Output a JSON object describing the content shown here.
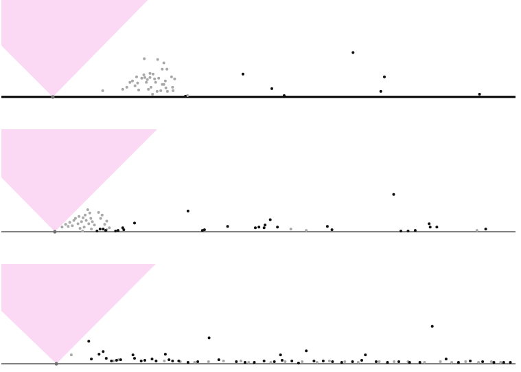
{
  "colors": {
    "background": "#ffffff",
    "cone": "#fbd9f5",
    "point_dark": "#111111",
    "point_light": "#a8a8a8",
    "baseline": "#000000",
    "origin": "#6f6f6f"
  },
  "chart_data": [
    {
      "type": "scatter",
      "title": "",
      "xlabel": "",
      "ylabel": "",
      "xlim": [
        0,
        100
      ],
      "ylim": [
        0,
        100
      ],
      "grid": false,
      "legend": "none",
      "cone": {
        "apex_x": 10,
        "top_left_x": 0,
        "top_right_x": 28.5
      },
      "dark_points": [
        [
          35.8,
          1
        ],
        [
          47,
          33
        ],
        [
          52.6,
          12
        ],
        [
          55,
          2
        ],
        [
          68.4,
          64
        ],
        [
          73.8,
          8
        ],
        [
          74.5,
          29
        ],
        [
          93,
          4
        ]
      ],
      "light_points": [
        [
          19.7,
          9
        ],
        [
          23.6,
          11
        ],
        [
          24.4,
          14
        ],
        [
          25,
          21
        ],
        [
          25.5,
          23
        ],
        [
          26,
          16
        ],
        [
          26.5,
          20
        ],
        [
          26.7,
          10
        ],
        [
          27.3,
          27
        ],
        [
          27.7,
          32
        ],
        [
          27.9,
          28
        ],
        [
          28.2,
          21
        ],
        [
          28.4,
          25
        ],
        [
          28.6,
          11
        ],
        [
          28.9,
          34
        ],
        [
          29.1,
          14
        ],
        [
          29.4,
          4
        ],
        [
          29.8,
          26
        ],
        [
          30,
          21
        ],
        [
          30.3,
          8
        ],
        [
          30.6,
          27
        ],
        [
          31,
          9
        ],
        [
          31.3,
          18
        ],
        [
          31.6,
          18
        ],
        [
          32,
          13
        ],
        [
          32.3,
          8
        ],
        [
          33.1,
          29
        ],
        [
          33.4,
          9
        ],
        [
          27.8,
          55
        ],
        [
          30.4,
          54
        ],
        [
          31.6,
          49
        ],
        [
          26.3,
          29
        ],
        [
          28.9,
          28
        ],
        [
          29.5,
          33
        ],
        [
          31.3,
          40
        ],
        [
          32.2,
          40
        ],
        [
          33.3,
          14
        ],
        [
          31.9,
          23
        ],
        [
          33.7,
          26
        ],
        [
          36.2,
          2
        ]
      ]
    },
    {
      "type": "scatter",
      "title": "",
      "xlabel": "",
      "ylabel": "",
      "xlim": [
        0,
        100
      ],
      "ylim": [
        0,
        100
      ],
      "grid": false,
      "legend": "none",
      "cone": {
        "apex_x": 10.4,
        "top_left_x": 0,
        "top_right_x": 30.3
      },
      "dark_points": [
        [
          18.6,
          1
        ],
        [
          19.2,
          4
        ],
        [
          19.8,
          4
        ],
        [
          20.3,
          2
        ],
        [
          22.2,
          1
        ],
        [
          22.7,
          2
        ],
        [
          23.6,
          6
        ],
        [
          23.8,
          3
        ],
        [
          25.9,
          13
        ],
        [
          36.3,
          31
        ],
        [
          39.1,
          2
        ],
        [
          39.5,
          3
        ],
        [
          44,
          8
        ],
        [
          49.4,
          6
        ],
        [
          50.1,
          7
        ],
        [
          51.1,
          6
        ],
        [
          51.3,
          10
        ],
        [
          52.3,
          18
        ],
        [
          53.7,
          7
        ],
        [
          63.4,
          8
        ],
        [
          64.3,
          3
        ],
        [
          76.3,
          56
        ],
        [
          77.7,
          1
        ],
        [
          79.1,
          1
        ],
        [
          80.5,
          2
        ],
        [
          83.2,
          12
        ],
        [
          83.4,
          7
        ],
        [
          84.7,
          7
        ],
        [
          94.2,
          4
        ]
      ],
      "light_points": [
        [
          11.8,
          7
        ],
        [
          12.5,
          11
        ],
        [
          13,
          8
        ],
        [
          13.3,
          14
        ],
        [
          13.8,
          9
        ],
        [
          14.1,
          17
        ],
        [
          14.4,
          20
        ],
        [
          14.9,
          12
        ],
        [
          15.1,
          23
        ],
        [
          15.3,
          5
        ],
        [
          15.6,
          15
        ],
        [
          15.9,
          21
        ],
        [
          16.1,
          7
        ],
        [
          16.3,
          25
        ],
        [
          16.5,
          17
        ],
        [
          16.8,
          33
        ],
        [
          17,
          12
        ],
        [
          17.2,
          28
        ],
        [
          17.4,
          20
        ],
        [
          17.5,
          4
        ],
        [
          17.7,
          15
        ],
        [
          18.1,
          10
        ],
        [
          18.9,
          29
        ],
        [
          19.3,
          20
        ],
        [
          19.6,
          25
        ],
        [
          20.1,
          11
        ],
        [
          20.5,
          16
        ],
        [
          21,
          6
        ],
        [
          56.3,
          4
        ],
        [
          59.3,
          2
        ],
        [
          92.5,
          2
        ],
        [
          20.5,
          3
        ],
        [
          15.8,
          1
        ]
      ]
    },
    {
      "type": "scatter",
      "title": "",
      "xlabel": "",
      "ylabel": "",
      "xlim": [
        0,
        100
      ],
      "ylim": [
        0,
        100
      ],
      "grid": false,
      "legend": "none",
      "cone": {
        "apex_x": 10.7,
        "top_left_x": 0,
        "top_right_x": 30
      },
      "dark_points": [
        [
          17,
          33
        ],
        [
          17.5,
          7
        ],
        [
          19,
          14
        ],
        [
          19.8,
          18
        ],
        [
          20.4,
          8
        ],
        [
          21.4,
          4
        ],
        [
          22.4,
          5
        ],
        [
          23.2,
          6
        ],
        [
          25.6,
          13
        ],
        [
          25.9,
          8
        ],
        [
          27.2,
          4
        ],
        [
          27.9,
          5
        ],
        [
          29.3,
          7
        ],
        [
          30.1,
          4
        ],
        [
          31.9,
          14
        ],
        [
          32.6,
          6
        ],
        [
          33.3,
          4
        ],
        [
          34.5,
          4
        ],
        [
          36.3,
          2
        ],
        [
          38.2,
          3
        ],
        [
          40.4,
          38
        ],
        [
          42.3,
          6
        ],
        [
          45.7,
          3
        ],
        [
          47.4,
          2
        ],
        [
          49.2,
          2
        ],
        [
          51.1,
          4
        ],
        [
          53.1,
          3
        ],
        [
          54.3,
          13
        ],
        [
          54.6,
          5
        ],
        [
          56.5,
          4
        ],
        [
          57.8,
          1
        ],
        [
          59.3,
          19
        ],
        [
          60.8,
          4
        ],
        [
          62.6,
          4
        ],
        [
          64.4,
          3
        ],
        [
          66.2,
          2
        ],
        [
          68.3,
          3
        ],
        [
          70.1,
          5
        ],
        [
          70.8,
          13
        ],
        [
          72.9,
          3
        ],
        [
          75.1,
          2
        ],
        [
          77.3,
          3
        ],
        [
          79.4,
          2
        ],
        [
          81.4,
          2
        ],
        [
          83.8,
          55
        ],
        [
          86.5,
          7
        ],
        [
          88.9,
          2
        ],
        [
          91.2,
          4
        ],
        [
          93.6,
          3
        ],
        [
          95.8,
          2
        ],
        [
          97.7,
          2
        ],
        [
          99,
          2
        ]
      ],
      "light_points": [
        [
          13.6,
          13
        ],
        [
          21.8,
          4
        ],
        [
          22.8,
          6
        ],
        [
          31.7,
          4
        ],
        [
          34.8,
          3
        ],
        [
          37.6,
          2
        ],
        [
          40.3,
          3
        ],
        [
          43.2,
          4
        ],
        [
          46.6,
          4
        ],
        [
          48.1,
          2
        ],
        [
          52.4,
          2
        ],
        [
          55.2,
          3
        ],
        [
          58.5,
          3
        ],
        [
          61.4,
          2
        ],
        [
          63.8,
          4
        ],
        [
          66.8,
          3
        ],
        [
          69.4,
          2
        ],
        [
          73.5,
          3
        ],
        [
          76.4,
          3
        ],
        [
          79.1,
          3
        ],
        [
          82.3,
          2
        ],
        [
          85.4,
          3
        ],
        [
          87.6,
          2
        ],
        [
          90.3,
          3
        ],
        [
          92.8,
          2
        ],
        [
          95.3,
          3
        ],
        [
          97.1,
          2
        ]
      ]
    }
  ]
}
